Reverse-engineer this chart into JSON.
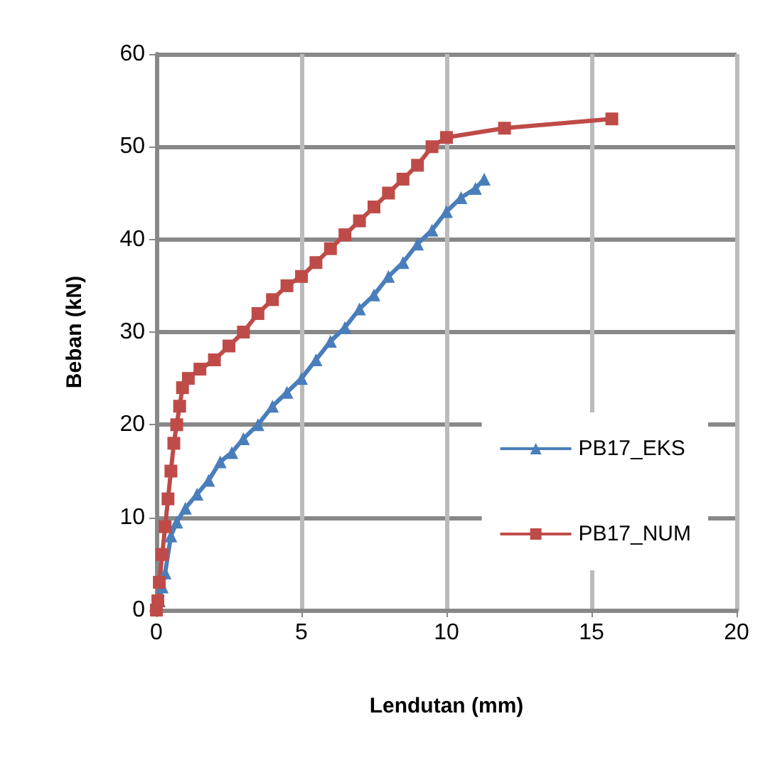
{
  "chart_data": {
    "type": "line",
    "xlabel": "Lendutan (mm)",
    "ylabel": "Beban (kN)",
    "xlim": [
      0,
      20
    ],
    "xticks": [
      0,
      5,
      10,
      15,
      20
    ],
    "ylim": [
      0,
      60
    ],
    "yticks": [
      0,
      10,
      20,
      30,
      40,
      50,
      60
    ],
    "grid": true,
    "legend": "right",
    "series": [
      {
        "name": "PB17_EKS",
        "color": "#4a7ebb",
        "marker": "triangle",
        "x": [
          0,
          0.1,
          0.2,
          0.3,
          0.5,
          0.7,
          1,
          1.4,
          1.8,
          2.2,
          2.6,
          3,
          3.5,
          4,
          4.5,
          5,
          5.5,
          6,
          6.5,
          7,
          7.5,
          8,
          8.5,
          9,
          9.5,
          10,
          10.5,
          11,
          11.3
        ],
        "values": [
          0,
          1,
          2.5,
          4,
          8,
          9.5,
          11,
          12.5,
          14,
          16,
          17,
          18.5,
          20,
          22,
          23.5,
          25,
          27,
          29,
          30.5,
          32.5,
          34,
          36,
          37.5,
          39.5,
          41,
          43,
          44.5,
          45.5,
          46.5
        ]
      },
      {
        "name": "PB17_NUM",
        "color": "#be4b48",
        "marker": "square",
        "x": [
          0,
          0.05,
          0.1,
          0.2,
          0.3,
          0.4,
          0.5,
          0.6,
          0.7,
          0.8,
          0.9,
          1.1,
          1.5,
          2,
          2.5,
          3,
          3.5,
          4,
          4.5,
          5,
          5.5,
          6,
          6.5,
          7,
          7.5,
          8,
          8.5,
          9,
          9.5,
          10,
          12,
          15.7
        ],
        "values": [
          0,
          1,
          3,
          6,
          9,
          12,
          15,
          18,
          20,
          22,
          24,
          25,
          26,
          27,
          28.5,
          30,
          32,
          33.5,
          35,
          36,
          37.5,
          39,
          40.5,
          42,
          43.5,
          45,
          46.5,
          48,
          50,
          51,
          52,
          53
        ]
      }
    ]
  }
}
